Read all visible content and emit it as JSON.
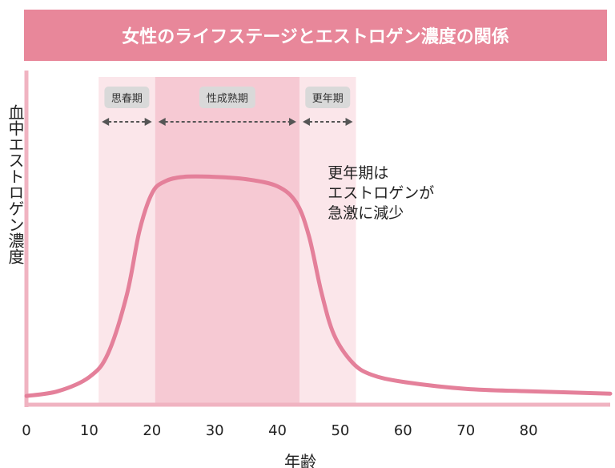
{
  "title": "女性のライフステージとエストロゲン濃度の関係",
  "colors": {
    "title_bg": "#e8879a",
    "curve": "#e4809a",
    "axis": "#f0b3c1",
    "band_light": "#fbe6ea",
    "band_mid": "#f6c9d3",
    "tag_bg": "#d9d9d9",
    "arrow": "#555555"
  },
  "chart_data": {
    "type": "line",
    "title": "女性のライフステージとエストロゲン濃度の関係",
    "xlabel": "年齢",
    "ylabel": "血中エストロゲン濃度",
    "xlim": [
      0,
      93
    ],
    "ylim": [
      0,
      100
    ],
    "x_ticks": [
      0,
      10,
      20,
      30,
      40,
      50,
      60,
      70,
      80
    ],
    "y_ticks_shown": false,
    "grid": false,
    "series": [
      {
        "x": [
          0,
          5,
          10,
          13,
          16,
          18,
          20,
          22,
          25,
          30,
          35,
          40,
          43,
          45,
          47,
          49,
          52,
          55,
          60,
          70,
          80,
          93
        ],
        "y": [
          2,
          4,
          10,
          20,
          45,
          72,
          88,
          93,
          95,
          95,
          94,
          91,
          84,
          70,
          46,
          28,
          16,
          11,
          8,
          5,
          4,
          3
        ]
      }
    ],
    "stages": [
      {
        "label": "思春期",
        "start": 11.5,
        "end": 20.5
      },
      {
        "label": "性成熟期",
        "start": 20.5,
        "end": 43.5
      },
      {
        "label": "更年期",
        "start": 43.5,
        "end": 52.5
      }
    ],
    "annotation": {
      "lines": [
        "更年期は",
        "エストロゲンが",
        "急激に減少"
      ],
      "x": 48,
      "y": 78
    }
  }
}
